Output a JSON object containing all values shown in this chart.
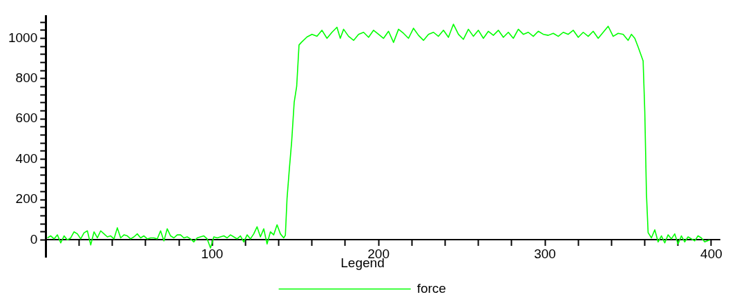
{
  "chart_data": {
    "type": "line",
    "legend_title": "Legend",
    "legend": "bottom",
    "grid": false,
    "marker": "none",
    "line_style": "solid",
    "xlim": [
      0,
      405
    ],
    "ylim": [
      -85,
      1110
    ],
    "xticks": [
      {
        "value": 20,
        "label": null
      },
      {
        "value": 40,
        "label": null
      },
      {
        "value": 60,
        "label": null
      },
      {
        "value": 80,
        "label": null
      },
      100,
      {
        "value": 120,
        "label": null
      },
      {
        "value": 140,
        "label": null
      },
      {
        "value": 160,
        "label": null
      },
      {
        "value": 180,
        "label": null
      },
      200,
      {
        "value": 220,
        "label": null
      },
      {
        "value": 240,
        "label": null
      },
      {
        "value": 260,
        "label": null
      },
      {
        "value": 280,
        "label": null
      },
      300,
      {
        "value": 320,
        "label": null
      },
      {
        "value": 340,
        "label": null
      },
      {
        "value": 360,
        "label": null
      },
      {
        "value": 380,
        "label": null
      },
      400
    ],
    "yticks": [
      0,
      {
        "value": 40,
        "label": null
      },
      {
        "value": 80,
        "label": null
      },
      {
        "value": 120,
        "label": null
      },
      {
        "value": 160,
        "label": null
      },
      200,
      {
        "value": 240,
        "label": null
      },
      {
        "value": 280,
        "label": null
      },
      {
        "value": 320,
        "label": null
      },
      {
        "value": 360,
        "label": null
      },
      400,
      {
        "value": 440,
        "label": null
      },
      {
        "value": 480,
        "label": null
      },
      {
        "value": 520,
        "label": null
      },
      {
        "value": 560,
        "label": null
      },
      600,
      {
        "value": 640,
        "label": null
      },
      {
        "value": 680,
        "label": null
      },
      {
        "value": 720,
        "label": null
      },
      {
        "value": 760,
        "label": null
      },
      800,
      {
        "value": 840,
        "label": null
      },
      {
        "value": 880,
        "label": null
      },
      {
        "value": 920,
        "label": null
      },
      {
        "value": 960,
        "label": null
      },
      1000,
      {
        "value": 1040,
        "label": null
      },
      {
        "value": 1080,
        "label": null
      }
    ],
    "series": [
      {
        "name": "force",
        "color": "#00ff00",
        "x": [
          1,
          3,
          5,
          7,
          9,
          11,
          13,
          15,
          17,
          19,
          21,
          23,
          25,
          27,
          29,
          31,
          33,
          35,
          37,
          39,
          41,
          43,
          45,
          47,
          49,
          51,
          53,
          55,
          57,
          59,
          61,
          63,
          65,
          67,
          69,
          71,
          73,
          75,
          77,
          79,
          81,
          83,
          85,
          87,
          89,
          91,
          93,
          95,
          97,
          99,
          101,
          103,
          105,
          107,
          109,
          111,
          113,
          115,
          117,
          119,
          121,
          123,
          125,
          127,
          129,
          131,
          133,
          135,
          137,
          139,
          141,
          143,
          144,
          145,
          146.4,
          147.8,
          149.3,
          150.8,
          152.2,
          153.6,
          157,
          160,
          163,
          166,
          169,
          172,
          175,
          177,
          179,
          182,
          185,
          188,
          191,
          194,
          197,
          200,
          203,
          206,
          209,
          212,
          215,
          218,
          221,
          224,
          227,
          230,
          233,
          236,
          239,
          242,
          245,
          248,
          251,
          254,
          257,
          260,
          263,
          266,
          269,
          272,
          275,
          278,
          281,
          284,
          287,
          290,
          293,
          296,
          299,
          302,
          305,
          308,
          311,
          314,
          317,
          320,
          323,
          326,
          329,
          332,
          335,
          338,
          341,
          344,
          347,
          350,
          352,
          354,
          356,
          359,
          360,
          361,
          362,
          364,
          366,
          368,
          370,
          372,
          374,
          376,
          378,
          380,
          382,
          384,
          386,
          388,
          390,
          392,
          394,
          396,
          399
        ],
        "values": [
          10,
          20,
          5,
          25,
          -15,
          20,
          0,
          10,
          40,
          30,
          5,
          35,
          45,
          -25,
          40,
          10,
          45,
          30,
          15,
          20,
          5,
          60,
          10,
          25,
          20,
          5,
          15,
          30,
          10,
          20,
          5,
          10,
          10,
          5,
          45,
          -5,
          55,
          20,
          10,
          25,
          25,
          10,
          15,
          5,
          -10,
          10,
          15,
          20,
          5,
          -40,
          15,
          10,
          15,
          20,
          10,
          25,
          15,
          5,
          20,
          -10,
          25,
          5,
          30,
          65,
          15,
          55,
          -20,
          40,
          25,
          75,
          30,
          10,
          23,
          205,
          353,
          490,
          683,
          762,
          967,
          980,
          1007,
          1020,
          1010,
          1040,
          1000,
          1030,
          1055,
          1000,
          1045,
          1010,
          990,
          1020,
          1030,
          1005,
          1040,
          1020,
          1000,
          1035,
          980,
          1045,
          1025,
          1000,
          1050,
          1015,
          990,
          1020,
          1030,
          1010,
          1040,
          1005,
          1070,
          1020,
          995,
          1045,
          1010,
          1040,
          1000,
          1035,
          1015,
          1040,
          1005,
          1030,
          1000,
          1045,
          1020,
          1030,
          1010,
          1035,
          1020,
          1015,
          1025,
          1010,
          1030,
          1020,
          1040,
          1005,
          1030,
          1010,
          1035,
          1000,
          1030,
          1060,
          1010,
          1025,
          1020,
          990,
          1020,
          1000,
          957,
          888,
          637,
          228,
          36,
          10,
          50,
          -10,
          20,
          -15,
          25,
          5,
          30,
          -20,
          20,
          -10,
          15,
          5,
          -5,
          20,
          10,
          -10,
          0
        ]
      }
    ]
  }
}
